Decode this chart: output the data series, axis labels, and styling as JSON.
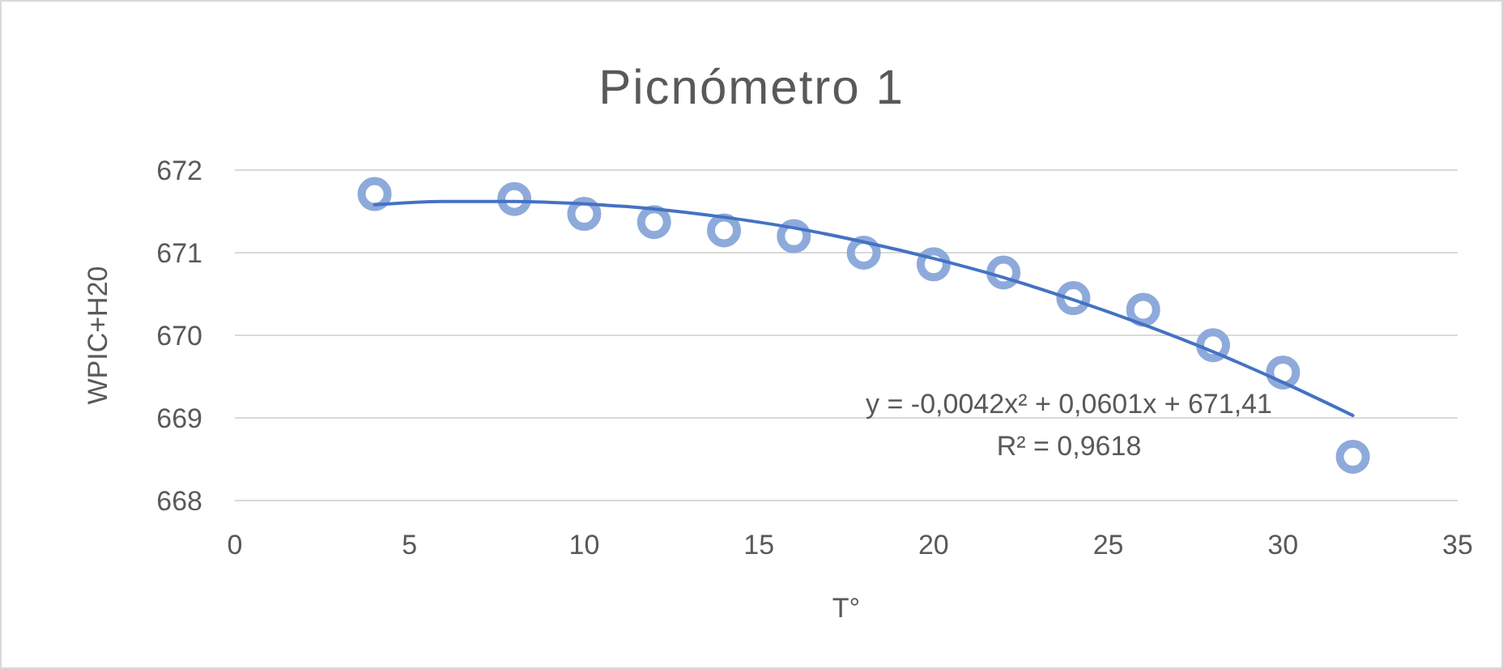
{
  "chart_data": {
    "type": "scatter",
    "title": "Picnómetro 1",
    "xlabel": "T°",
    "ylabel": "WPIC+H20",
    "xlim": [
      0,
      35
    ],
    "xticks": [
      0,
      5,
      10,
      15,
      20,
      25,
      30,
      35
    ],
    "ylim": [
      668,
      672
    ],
    "yticks": [
      668,
      669,
      670,
      671,
      672
    ],
    "grid": "y",
    "marker": "circle",
    "series": [
      {
        "color": "#8eaadb",
        "x": [
          4,
          8,
          10,
          12,
          14,
          16,
          18,
          20,
          22,
          24,
          26,
          28,
          30,
          32
        ],
        "values": [
          671.71,
          671.65,
          671.47,
          671.37,
          671.27,
          671.2,
          671.0,
          670.86,
          670.76,
          670.45,
          670.31,
          669.88,
          669.55,
          668.53
        ]
      },
      {
        "type": "line",
        "color": "#4472c4",
        "marker": "none",
        "line_style": "solid",
        "x": [
          4,
          6,
          8,
          10,
          12,
          14,
          16,
          18,
          20,
          22,
          24,
          26,
          28,
          30,
          32
        ],
        "values": [
          671.58,
          671.62,
          671.62,
          671.59,
          671.53,
          671.43,
          671.3,
          671.13,
          670.93,
          670.7,
          670.43,
          670.13,
          669.8,
          669.43,
          669.03
        ]
      }
    ],
    "annotations": [
      "y = -0,0042x² + 0,0601x + 671,41",
      "R² = 0,9618"
    ]
  }
}
